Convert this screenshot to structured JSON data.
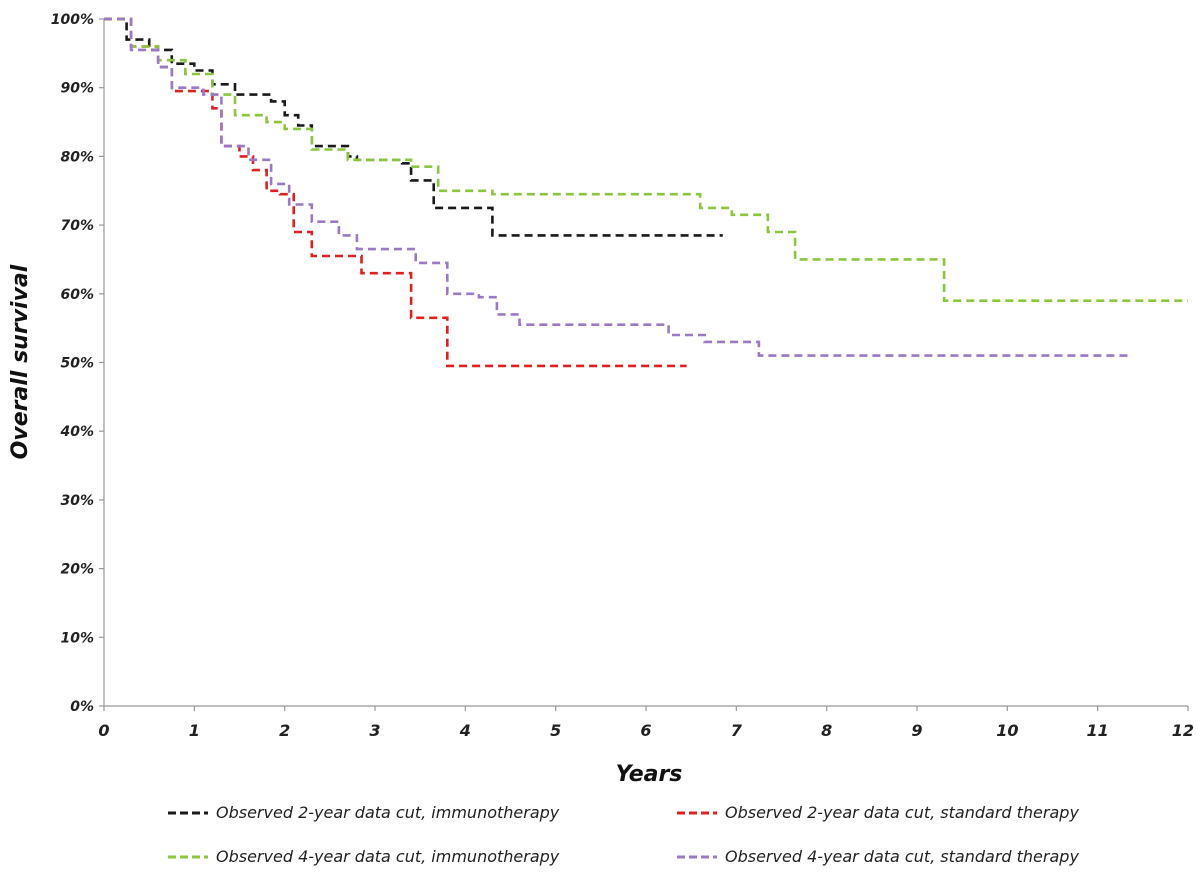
{
  "chart_data": {
    "type": "line",
    "title": "",
    "xlabel": "Years",
    "ylabel": "Overall survival",
    "xlim": [
      0,
      12
    ],
    "ylim": [
      0,
      100
    ],
    "x_ticks": [
      "0",
      "1",
      "2",
      "3",
      "4",
      "5",
      "6",
      "7",
      "8",
      "9",
      "10",
      "11",
      "12"
    ],
    "y_ticks": [
      "0%",
      "10%",
      "20%",
      "30%",
      "40%",
      "50%",
      "60%",
      "70%",
      "80%",
      "90%",
      "100%"
    ],
    "grid": false,
    "legend_position": "bottom",
    "series": [
      {
        "name": "Observed 2-year data cut, immunotherapy",
        "color": "#1a1a1a",
        "points": [
          [
            0,
            100
          ],
          [
            0.25,
            97
          ],
          [
            0.5,
            95.5
          ],
          [
            0.75,
            93.5
          ],
          [
            1,
            92.5
          ],
          [
            1.2,
            90.5
          ],
          [
            1.45,
            89
          ],
          [
            1.85,
            88
          ],
          [
            2,
            86
          ],
          [
            2.15,
            84.5
          ],
          [
            2.3,
            81.5
          ],
          [
            2.7,
            80
          ],
          [
            2.8,
            79.5
          ],
          [
            3.3,
            79
          ],
          [
            3.4,
            76.5
          ],
          [
            3.6,
            76.5
          ],
          [
            3.65,
            72.5
          ],
          [
            4.1,
            72.5
          ],
          [
            4.3,
            68.5
          ],
          [
            6.85,
            68.5
          ]
        ]
      },
      {
        "name": "Observed 2-year data cut, standard therapy",
        "color": "#e02020",
        "points": [
          [
            0,
            100
          ],
          [
            0.3,
            96
          ],
          [
            0.6,
            93
          ],
          [
            0.75,
            89.5
          ],
          [
            1,
            89.5
          ],
          [
            1.2,
            87
          ],
          [
            1.3,
            81.5
          ],
          [
            1.5,
            80
          ],
          [
            1.65,
            78
          ],
          [
            1.8,
            75
          ],
          [
            1.95,
            74.5
          ],
          [
            2.1,
            69
          ],
          [
            2.3,
            65.5
          ],
          [
            2.75,
            65.5
          ],
          [
            2.85,
            63
          ],
          [
            3.3,
            63
          ],
          [
            3.4,
            56.5
          ],
          [
            3.6,
            56.5
          ],
          [
            3.8,
            49.5
          ],
          [
            6.45,
            49.5
          ]
        ]
      },
      {
        "name": "Observed 4-year data cut, immunotherapy",
        "color": "#8cc63f",
        "points": [
          [
            0,
            100
          ],
          [
            0.3,
            96
          ],
          [
            0.6,
            94
          ],
          [
            0.9,
            92
          ],
          [
            1.2,
            89
          ],
          [
            1.45,
            86
          ],
          [
            1.8,
            85
          ],
          [
            2,
            84
          ],
          [
            2.3,
            81
          ],
          [
            2.7,
            79.5
          ],
          [
            3.4,
            78.5
          ],
          [
            3.7,
            75
          ],
          [
            4.3,
            74.5
          ],
          [
            6.5,
            74.5
          ],
          [
            6.6,
            72.5
          ],
          [
            6.95,
            71.5
          ],
          [
            7.35,
            69
          ],
          [
            7.65,
            65
          ],
          [
            9.25,
            65
          ],
          [
            9.3,
            59
          ],
          [
            12,
            59
          ]
        ]
      },
      {
        "name": "Observed 4-year data cut, standard therapy",
        "color": "#9b79c7",
        "points": [
          [
            0,
            100
          ],
          [
            0.3,
            95.5
          ],
          [
            0.6,
            93
          ],
          [
            0.75,
            90
          ],
          [
            1.1,
            89
          ],
          [
            1.3,
            81.5
          ],
          [
            1.6,
            79.5
          ],
          [
            1.85,
            76
          ],
          [
            2.05,
            73
          ],
          [
            2.3,
            70.5
          ],
          [
            2.6,
            68.5
          ],
          [
            2.8,
            66.5
          ],
          [
            3.35,
            66.5
          ],
          [
            3.45,
            64.5
          ],
          [
            3.7,
            64.5
          ],
          [
            3.8,
            60
          ],
          [
            4.15,
            59.5
          ],
          [
            4.35,
            57
          ],
          [
            4.6,
            55.5
          ],
          [
            6.1,
            55.5
          ],
          [
            6.25,
            54
          ],
          [
            6.6,
            54
          ],
          [
            6.65,
            53
          ],
          [
            7.2,
            53
          ],
          [
            7.25,
            51
          ],
          [
            11.35,
            51
          ]
        ]
      }
    ]
  }
}
